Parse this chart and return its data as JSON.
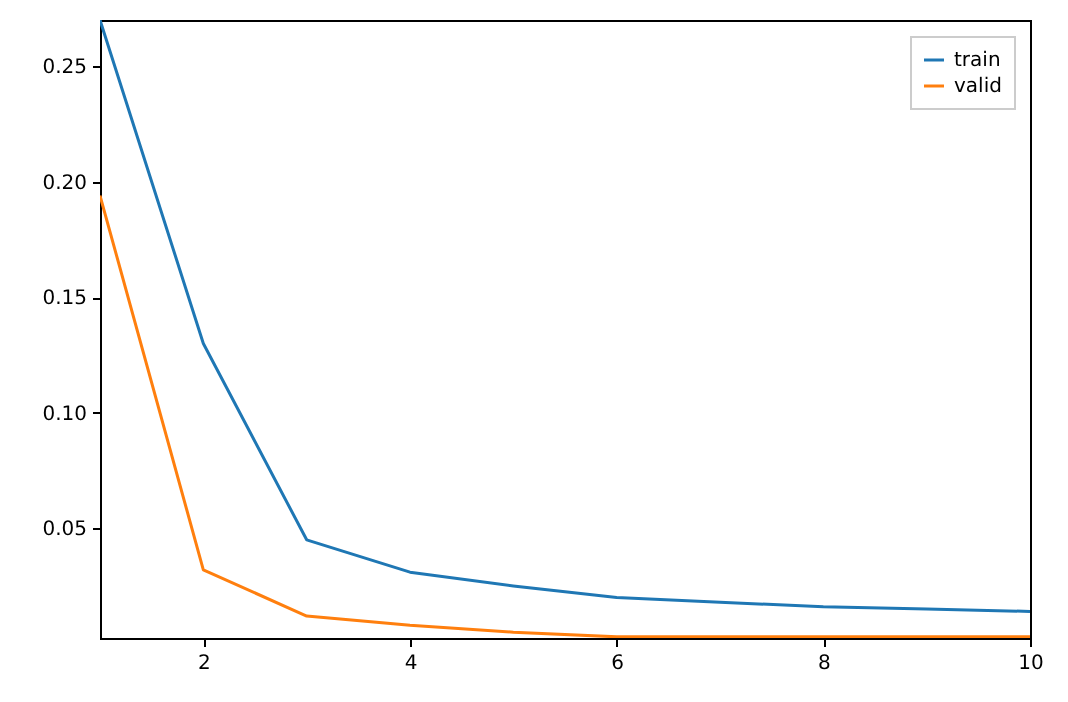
{
  "chart_data": {
    "type": "line",
    "x": [
      1,
      2,
      3,
      4,
      5,
      6,
      7,
      8,
      9,
      10
    ],
    "series": [
      {
        "name": "train",
        "color": "#1f77b4",
        "values": [
          0.27,
          0.13,
          0.045,
          0.031,
          0.025,
          0.02,
          0.018,
          0.016,
          0.015,
          0.014
        ]
      },
      {
        "name": "valid",
        "color": "#ff7f0e",
        "values": [
          0.194,
          0.032,
          0.012,
          0.008,
          0.005,
          0.003,
          0.003,
          0.003,
          0.003,
          0.003
        ]
      }
    ],
    "xlim": [
      1,
      10
    ],
    "xticks": [
      2,
      4,
      6,
      8,
      10
    ],
    "ylim": [
      0.0025,
      0.27
    ],
    "yticks": [
      {
        "value": 0.05,
        "label": "0.05"
      },
      {
        "value": 0.1,
        "label": "0.10"
      },
      {
        "value": 0.15,
        "label": "0.15"
      },
      {
        "value": 0.2,
        "label": "0.20"
      },
      {
        "value": 0.25,
        "label": "0.25"
      }
    ],
    "legend": "top right",
    "grid": false,
    "marker": "none",
    "line_style": "solid"
  }
}
